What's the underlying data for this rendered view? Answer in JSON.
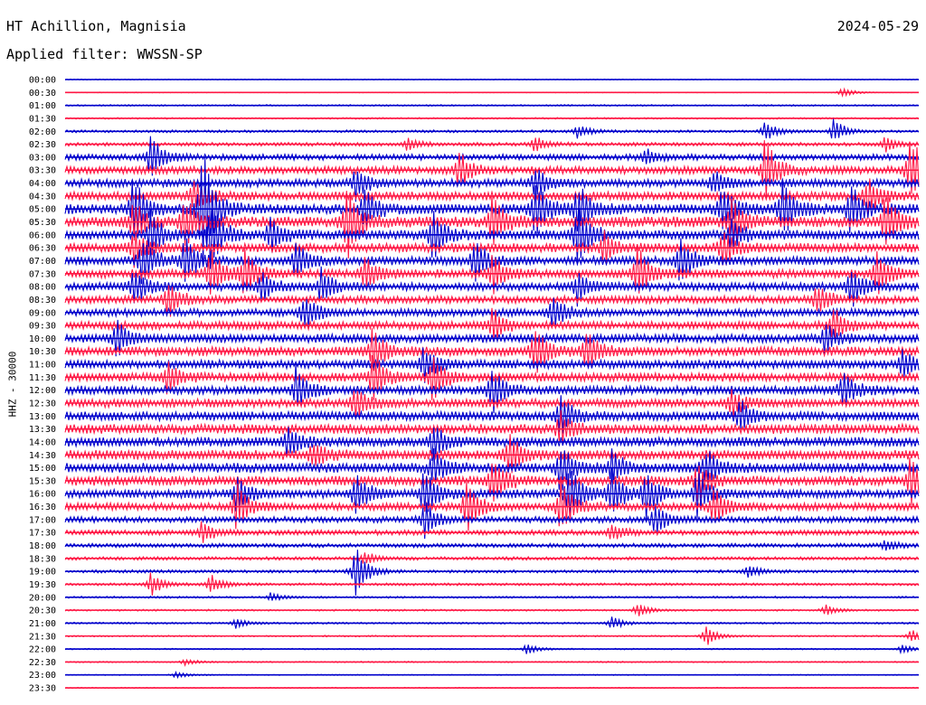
{
  "header": {
    "station": "HT Achillion, Magnisia",
    "date": "2024-05-29",
    "filter": "Applied filter: WWSSN-SP"
  },
  "chart_data": {
    "type": "line",
    "ylabel": "HHZ - 30000",
    "colors": {
      "even_trace": "#0000cc",
      "odd_trace": "#ff1744"
    },
    "rows": [
      "00:00",
      "00:30",
      "01:00",
      "01:30",
      "02:00",
      "02:30",
      "03:00",
      "03:30",
      "04:00",
      "04:30",
      "05:00",
      "05:30",
      "06:00",
      "06:30",
      "07:00",
      "07:30",
      "08:00",
      "08:30",
      "09:00",
      "09:30",
      "10:00",
      "10:30",
      "11:00",
      "11:30",
      "12:00",
      "12:30",
      "13:00",
      "13:30",
      "14:00",
      "14:30",
      "15:00",
      "15:30",
      "16:00",
      "16:30",
      "17:00",
      "17:30",
      "18:00",
      "18:30",
      "19:00",
      "19:30",
      "20:00",
      "20:30",
      "21:00",
      "21:30",
      "22:00",
      "22:30",
      "23:00",
      "23:30"
    ],
    "noise_level": [
      0.3,
      0.3,
      0.6,
      0.6,
      1,
      1.4,
      2.4,
      3,
      3.2,
      3.4,
      4,
      4.2,
      3.8,
      3.6,
      3.4,
      3.4,
      3.2,
      3,
      3,
      3.2,
      3.4,
      3.6,
      3.4,
      3.4,
      3.4,
      3.4,
      3.6,
      3.8,
      3.8,
      3.8,
      3.8,
      3.8,
      3.4,
      3,
      2.4,
      2,
      1.6,
      1.3,
      1.2,
      1,
      0.8,
      0.7,
      0.7,
      0.6,
      0.5,
      0.5,
      0.4,
      0.4
    ],
    "events": [
      {
        "row": 1,
        "x": 0.91,
        "amp": 6
      },
      {
        "row": 4,
        "x": 0.6,
        "amp": 8
      },
      {
        "row": 4,
        "x": 0.82,
        "amp": 12
      },
      {
        "row": 4,
        "x": 0.9,
        "amp": 14
      },
      {
        "row": 5,
        "x": 0.4,
        "amp": 7
      },
      {
        "row": 5,
        "x": 0.55,
        "amp": 9
      },
      {
        "row": 5,
        "x": 0.96,
        "amp": 10
      },
      {
        "row": 6,
        "x": 0.1,
        "amp": 30
      },
      {
        "row": 6,
        "x": 0.68,
        "amp": 9
      },
      {
        "row": 7,
        "x": 0.46,
        "amp": 25
      },
      {
        "row": 7,
        "x": 0.82,
        "amp": 40
      },
      {
        "row": 7,
        "x": 0.99,
        "amp": 45
      },
      {
        "row": 8,
        "x": 0.34,
        "amp": 20
      },
      {
        "row": 8,
        "x": 0.55,
        "amp": 18
      },
      {
        "row": 8,
        "x": 0.76,
        "amp": 14
      },
      {
        "row": 9,
        "x": 0.15,
        "amp": 22
      },
      {
        "row": 9,
        "x": 0.94,
        "amp": 25
      },
      {
        "row": 10,
        "x": 0.08,
        "amp": 40
      },
      {
        "row": 10,
        "x": 0.16,
        "amp": 75
      },
      {
        "row": 10,
        "x": 0.35,
        "amp": 26
      },
      {
        "row": 10,
        "x": 0.55,
        "amp": 35
      },
      {
        "row": 10,
        "x": 0.6,
        "amp": 30
      },
      {
        "row": 10,
        "x": 0.77,
        "amp": 30
      },
      {
        "row": 10,
        "x": 0.84,
        "amp": 36
      },
      {
        "row": 10,
        "x": 0.92,
        "amp": 30
      },
      {
        "row": 11,
        "x": 0.08,
        "amp": 24
      },
      {
        "row": 11,
        "x": 0.14,
        "amp": 30
      },
      {
        "row": 11,
        "x": 0.33,
        "amp": 44
      },
      {
        "row": 11,
        "x": 0.5,
        "amp": 30
      },
      {
        "row": 11,
        "x": 0.78,
        "amp": 28
      },
      {
        "row": 11,
        "x": 0.96,
        "amp": 34
      },
      {
        "row": 12,
        "x": 0.1,
        "amp": 26
      },
      {
        "row": 12,
        "x": 0.17,
        "amp": 40
      },
      {
        "row": 12,
        "x": 0.24,
        "amp": 22
      },
      {
        "row": 12,
        "x": 0.43,
        "amp": 30
      },
      {
        "row": 12,
        "x": 0.6,
        "amp": 40
      },
      {
        "row": 12,
        "x": 0.78,
        "amp": 18
      },
      {
        "row": 13,
        "x": 0.08,
        "amp": 22
      },
      {
        "row": 13,
        "x": 0.63,
        "amp": 20
      },
      {
        "row": 13,
        "x": 0.77,
        "amp": 24
      },
      {
        "row": 14,
        "x": 0.09,
        "amp": 30
      },
      {
        "row": 14,
        "x": 0.14,
        "amp": 30
      },
      {
        "row": 14,
        "x": 0.27,
        "amp": 22
      },
      {
        "row": 14,
        "x": 0.48,
        "amp": 26
      },
      {
        "row": 14,
        "x": 0.72,
        "amp": 30
      },
      {
        "row": 15,
        "x": 0.17,
        "amp": 30
      },
      {
        "row": 15,
        "x": 0.21,
        "amp": 28
      },
      {
        "row": 15,
        "x": 0.35,
        "amp": 20
      },
      {
        "row": 15,
        "x": 0.5,
        "amp": 22
      },
      {
        "row": 15,
        "x": 0.67,
        "amp": 32
      },
      {
        "row": 15,
        "x": 0.95,
        "amp": 26
      },
      {
        "row": 16,
        "x": 0.08,
        "amp": 24
      },
      {
        "row": 16,
        "x": 0.23,
        "amp": 18
      },
      {
        "row": 16,
        "x": 0.3,
        "amp": 22
      },
      {
        "row": 16,
        "x": 0.6,
        "amp": 18
      },
      {
        "row": 16,
        "x": 0.92,
        "amp": 26
      },
      {
        "row": 17,
        "x": 0.12,
        "amp": 22
      },
      {
        "row": 17,
        "x": 0.88,
        "amp": 18
      },
      {
        "row": 18,
        "x": 0.28,
        "amp": 22
      },
      {
        "row": 18,
        "x": 0.57,
        "amp": 22
      },
      {
        "row": 19,
        "x": 0.5,
        "amp": 22
      },
      {
        "row": 19,
        "x": 0.9,
        "amp": 20
      },
      {
        "row": 20,
        "x": 0.06,
        "amp": 22
      },
      {
        "row": 20,
        "x": 0.89,
        "amp": 18
      },
      {
        "row": 21,
        "x": 0.36,
        "amp": 26
      },
      {
        "row": 21,
        "x": 0.55,
        "amp": 28
      },
      {
        "row": 21,
        "x": 0.61,
        "amp": 24
      },
      {
        "row": 22,
        "x": 0.42,
        "amp": 22
      },
      {
        "row": 22,
        "x": 0.98,
        "amp": 18
      },
      {
        "row": 23,
        "x": 0.12,
        "amp": 20
      },
      {
        "row": 23,
        "x": 0.36,
        "amp": 26
      },
      {
        "row": 23,
        "x": 0.43,
        "amp": 28
      },
      {
        "row": 24,
        "x": 0.27,
        "amp": 26
      },
      {
        "row": 24,
        "x": 0.5,
        "amp": 28
      },
      {
        "row": 24,
        "x": 0.91,
        "amp": 22
      },
      {
        "row": 25,
        "x": 0.34,
        "amp": 20
      },
      {
        "row": 25,
        "x": 0.78,
        "amp": 16
      },
      {
        "row": 26,
        "x": 0.58,
        "amp": 24
      },
      {
        "row": 26,
        "x": 0.79,
        "amp": 20
      },
      {
        "row": 27,
        "x": 0.58,
        "amp": 18
      },
      {
        "row": 28,
        "x": 0.26,
        "amp": 18
      },
      {
        "row": 28,
        "x": 0.43,
        "amp": 22
      },
      {
        "row": 29,
        "x": 0.29,
        "amp": 16
      },
      {
        "row": 29,
        "x": 0.52,
        "amp": 24
      },
      {
        "row": 30,
        "x": 0.43,
        "amp": 22
      },
      {
        "row": 30,
        "x": 0.58,
        "amp": 30
      },
      {
        "row": 30,
        "x": 0.64,
        "amp": 20
      },
      {
        "row": 30,
        "x": 0.75,
        "amp": 22
      },
      {
        "row": 31,
        "x": 0.5,
        "amp": 30
      },
      {
        "row": 31,
        "x": 0.74,
        "amp": 22
      },
      {
        "row": 31,
        "x": 0.99,
        "amp": 26
      },
      {
        "row": 32,
        "x": 0.2,
        "amp": 20
      },
      {
        "row": 32,
        "x": 0.34,
        "amp": 26
      },
      {
        "row": 32,
        "x": 0.42,
        "amp": 30
      },
      {
        "row": 32,
        "x": 0.59,
        "amp": 34
      },
      {
        "row": 32,
        "x": 0.64,
        "amp": 26
      },
      {
        "row": 32,
        "x": 0.68,
        "amp": 28
      },
      {
        "row": 32,
        "x": 0.74,
        "amp": 26
      },
      {
        "row": 33,
        "x": 0.2,
        "amp": 28
      },
      {
        "row": 33,
        "x": 0.47,
        "amp": 30
      },
      {
        "row": 33,
        "x": 0.58,
        "amp": 34
      },
      {
        "row": 33,
        "x": 0.76,
        "amp": 24
      },
      {
        "row": 34,
        "x": 0.42,
        "amp": 22
      },
      {
        "row": 34,
        "x": 0.69,
        "amp": 20
      },
      {
        "row": 35,
        "x": 0.16,
        "amp": 12
      },
      {
        "row": 35,
        "x": 0.64,
        "amp": 10
      },
      {
        "row": 36,
        "x": 0.96,
        "amp": 6
      },
      {
        "row": 37,
        "x": 0.35,
        "amp": 8
      },
      {
        "row": 38,
        "x": 0.34,
        "amp": 30
      },
      {
        "row": 38,
        "x": 0.8,
        "amp": 8
      },
      {
        "row": 39,
        "x": 0.1,
        "amp": 14
      },
      {
        "row": 39,
        "x": 0.17,
        "amp": 12
      },
      {
        "row": 40,
        "x": 0.24,
        "amp": 5
      },
      {
        "row": 41,
        "x": 0.67,
        "amp": 8
      },
      {
        "row": 41,
        "x": 0.89,
        "amp": 6
      },
      {
        "row": 42,
        "x": 0.2,
        "amp": 6
      },
      {
        "row": 42,
        "x": 0.64,
        "amp": 8
      },
      {
        "row": 43,
        "x": 0.75,
        "amp": 12
      },
      {
        "row": 43,
        "x": 0.99,
        "amp": 8
      },
      {
        "row": 44,
        "x": 0.54,
        "amp": 6
      },
      {
        "row": 44,
        "x": 0.98,
        "amp": 6
      },
      {
        "row": 45,
        "x": 0.14,
        "amp": 4
      },
      {
        "row": 46,
        "x": 0.13,
        "amp": 4
      }
    ]
  }
}
